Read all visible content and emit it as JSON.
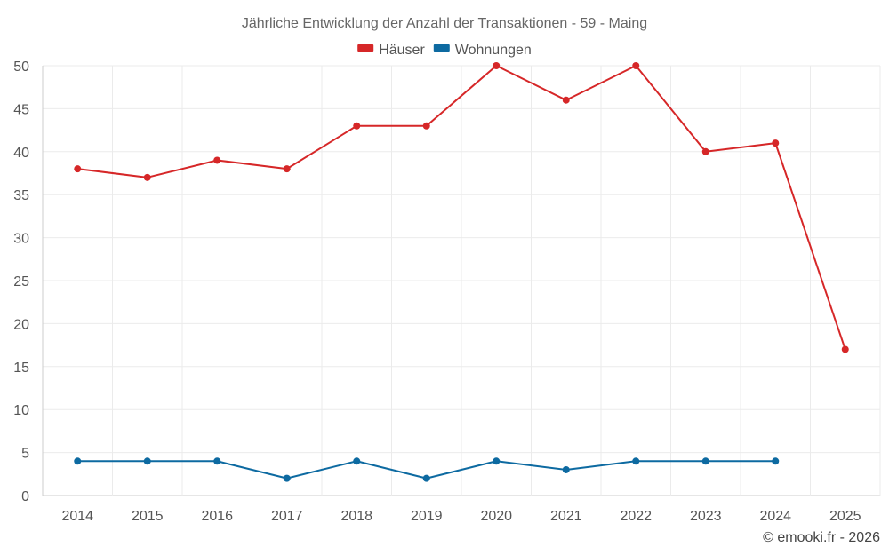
{
  "chart_data": {
    "type": "line",
    "title": "Jährliche Entwicklung der Anzahl der Transaktionen - 59 - Maing",
    "categories": [
      "2014",
      "2015",
      "2016",
      "2017",
      "2018",
      "2019",
      "2020",
      "2021",
      "2022",
      "2023",
      "2024",
      "2025"
    ],
    "series": [
      {
        "name": "Häuser",
        "color": "#d62728",
        "values": [
          38,
          37,
          39,
          38,
          43,
          43,
          50,
          46,
          50,
          40,
          41,
          17
        ]
      },
      {
        "name": "Wohnungen",
        "color": "#0d6aa1",
        "values": [
          4,
          4,
          4,
          2,
          4,
          2,
          4,
          3,
          4,
          4,
          4,
          null
        ]
      }
    ],
    "ylim": [
      0,
      50
    ],
    "yticks": [
      0,
      5,
      10,
      15,
      20,
      25,
      30,
      35,
      40,
      45,
      50
    ],
    "grid": true,
    "legend": "top-center",
    "xlabel": "",
    "ylabel": ""
  },
  "credit": "© emooki.fr - 2026"
}
